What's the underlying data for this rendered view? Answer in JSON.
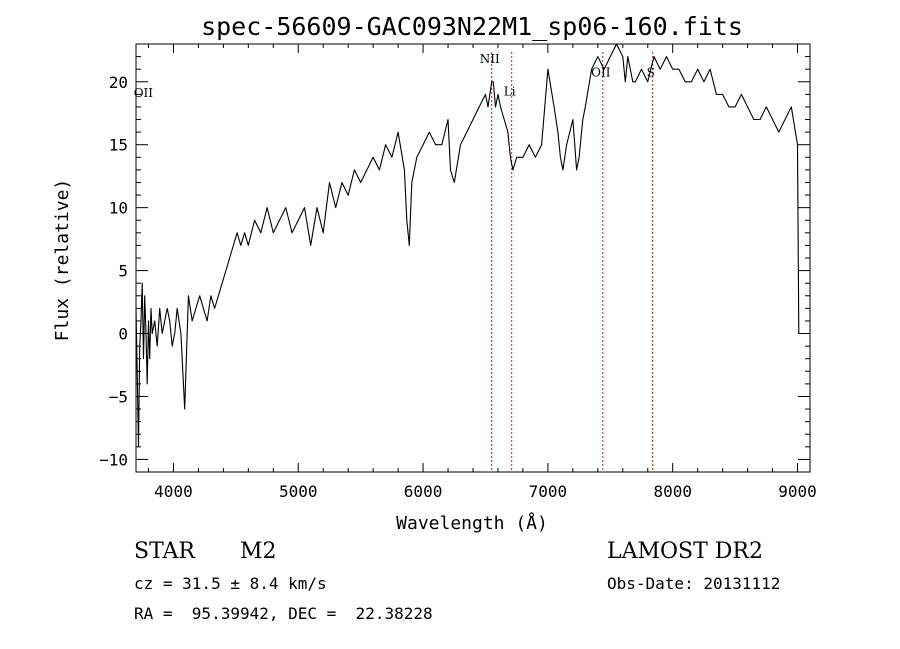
{
  "chart_data": {
    "type": "line",
    "title": "spec-56609-GAC093N22M1_sp06-160.fits",
    "xlabel": "Wavelength (Å)",
    "ylabel": "Flux (relative)",
    "xlim": [
      3700,
      9100
    ],
    "ylim": [
      -11,
      23
    ],
    "xticks": [
      4000,
      5000,
      6000,
      7000,
      8000,
      9000
    ],
    "yticks": [
      -10,
      -5,
      0,
      5,
      10,
      15,
      20
    ],
    "grid": false,
    "line_color": "#000000",
    "marker_color": "#b22222",
    "series": [
      {
        "x": [
          3700,
          3710,
          3720,
          3730,
          3740,
          3750,
          3760,
          3770,
          3780,
          3790,
          3800,
          3810,
          3820,
          3830,
          3850,
          3870,
          3890,
          3910,
          3930,
          3950,
          3970,
          3990,
          4010,
          4030,
          4060,
          4090,
          4120,
          4150,
          4180,
          4210,
          4240,
          4270,
          4300,
          4330,
          4360,
          4390,
          4420,
          4450,
          4480,
          4510,
          4540,
          4570,
          4600,
          4650,
          4700,
          4750,
          4800,
          4850,
          4900,
          4950,
          5000,
          5050,
          5100,
          5150,
          5200,
          5250,
          5300,
          5350,
          5400,
          5450,
          5500,
          5550,
          5600,
          5650,
          5700,
          5750,
          5800,
          5850,
          5870,
          5890,
          5910,
          5930,
          5950,
          6000,
          6050,
          6100,
          6150,
          6200,
          6220,
          6250,
          6300,
          6350,
          6400,
          6450,
          6500,
          6520,
          6550,
          6563,
          6580,
          6600,
          6620,
          6650,
          6680,
          6700,
          6720,
          6750,
          6800,
          6850,
          6900,
          6950,
          7000,
          7050,
          7080,
          7100,
          7120,
          7150,
          7200,
          7230,
          7250,
          7280,
          7300,
          7350,
          7400,
          7450,
          7500,
          7550,
          7600,
          7620,
          7640,
          7660,
          7680,
          7700,
          7750,
          7800,
          7850,
          7900,
          7950,
          8000,
          8050,
          8100,
          8150,
          8200,
          8250,
          8300,
          8350,
          8400,
          8450,
          8500,
          8550,
          8600,
          8650,
          8700,
          8750,
          8800,
          8850,
          8900,
          8950,
          9000,
          9010
        ],
        "y": [
          2,
          -3,
          -9,
          -1,
          1,
          4,
          -2,
          3,
          0,
          -4,
          1,
          -2,
          2,
          0,
          1,
          -1,
          2,
          0,
          1,
          2,
          1,
          -1,
          0,
          2,
          0,
          -6,
          3,
          1,
          2,
          3,
          2,
          1,
          3,
          2,
          3,
          4,
          5,
          6,
          7,
          8,
          7,
          8,
          7,
          9,
          8,
          10,
          8,
          9,
          10,
          8,
          9,
          10,
          7,
          10,
          8,
          12,
          10,
          12,
          11,
          13,
          12,
          13,
          14,
          13,
          15,
          14,
          16,
          13,
          9,
          7,
          12,
          13,
          14,
          15,
          16,
          15,
          15,
          17,
          13,
          12,
          15,
          16,
          17,
          18,
          19,
          18,
          20,
          20,
          18,
          19,
          18,
          17,
          16,
          14,
          13,
          14,
          14,
          15,
          14,
          15,
          21,
          18,
          16,
          14,
          13,
          15,
          17,
          13,
          14,
          17,
          18,
          21,
          22,
          21,
          22,
          23,
          22,
          20,
          22,
          21,
          20,
          20,
          21,
          20,
          22,
          21,
          22,
          21,
          21,
          20,
          20,
          21,
          20,
          21,
          19,
          19,
          18,
          18,
          19,
          18,
          17,
          17,
          18,
          17,
          16,
          17,
          18,
          15,
          0
        ]
      }
    ],
    "line_markers": [
      {
        "label": "NII",
        "x": 6550,
        "label_y": 21.5
      },
      {
        "label": "Li",
        "x": 6710,
        "label_y": 18.9
      },
      {
        "label": "OII",
        "x": 7440,
        "label_y": 20.4
      },
      {
        "label": "S",
        "x": 7840,
        "label_y": 20.4
      }
    ],
    "edge_label": {
      "label": "OII",
      "x": 3727,
      "label_y": 18.8
    }
  },
  "info": {
    "object_class": "STAR",
    "subclass": "M2",
    "survey": "LAMOST DR2",
    "cz": "cz = 31.5 ± 8.4 km/s",
    "obs_date": "Obs-Date: 20131112",
    "coords": "RA =  95.39942, DEC =  22.38228"
  }
}
